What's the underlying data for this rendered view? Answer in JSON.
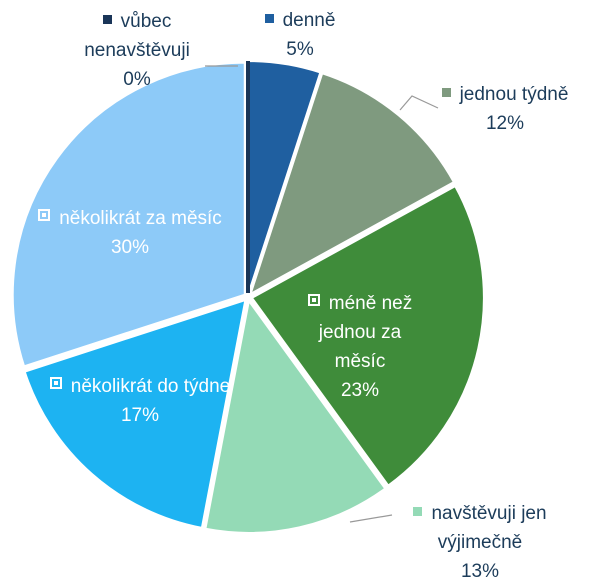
{
  "chart_data": {
    "type": "pie",
    "categories": [
      "denně",
      "jednou týdně",
      "méně než jednou za měsíc",
      "navštěvuji jen výjimečně",
      "několikrát do týdne",
      "několikrát za měsíc",
      "vůbec nenavštěvuji"
    ],
    "values": [
      5,
      12,
      23,
      13,
      17,
      30,
      0
    ],
    "value_labels": [
      "5%",
      "12%",
      "23%",
      "13%",
      "17%",
      "30%",
      "0%"
    ],
    "colors": [
      "#1f5fa0",
      "#7f9a7f",
      "#3f8c3a",
      "#94dab6",
      "#1db3f2",
      "#8dcaf8",
      "#1a3558"
    ]
  }
}
